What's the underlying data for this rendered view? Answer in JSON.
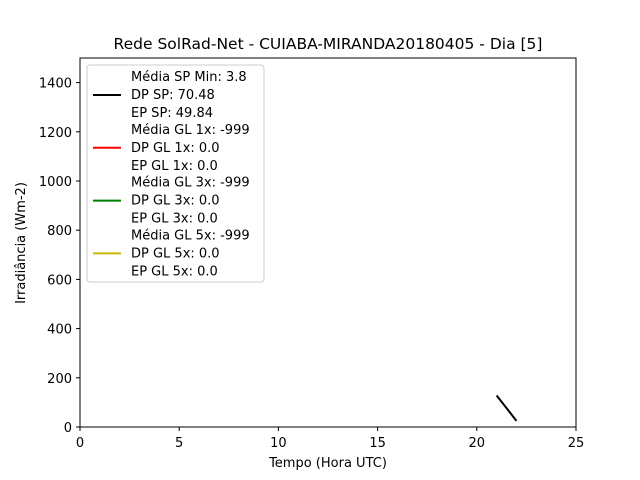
{
  "chart_data": {
    "type": "line",
    "title": "Rede SolRad-Net - CUIABA-MIRANDA20180405 - Dia [5]",
    "xlabel": "Tempo (Hora UTC)",
    "ylabel": "Irradiância (Wm-2)",
    "xlim": [
      0,
      25
    ],
    "ylim": [
      0,
      1500
    ],
    "xticks": [
      0,
      5,
      10,
      15,
      20,
      25
    ],
    "yticks": [
      0,
      200,
      400,
      600,
      800,
      1000,
      1200,
      1400
    ],
    "grid": false,
    "legend_position": "top-left",
    "series": [
      {
        "color": "#000000",
        "legend": [
          "Média SP Min: 3.8",
          "DP SP: 70.48",
          "EP SP: 49.84"
        ],
        "x": [
          21.0,
          22.0
        ],
        "y": [
          128,
          25
        ]
      },
      {
        "color": "#ff0000",
        "legend": [
          "Média GL 1x: -999",
          "DP GL 1x: 0.0",
          "EP GL 1x: 0.0"
        ],
        "x": [],
        "y": []
      },
      {
        "color": "#008000",
        "legend": [
          "Média GL 3x: -999",
          "DP GL 3x: 0.0",
          "EP GL 3x: 0.0"
        ],
        "x": [],
        "y": []
      },
      {
        "color": "#ccb800",
        "legend": [
          "Média GL 5x: -999",
          "DP GL 5x: 0.0",
          "EP GL 5x: 0.0"
        ],
        "x": [],
        "y": []
      }
    ]
  }
}
